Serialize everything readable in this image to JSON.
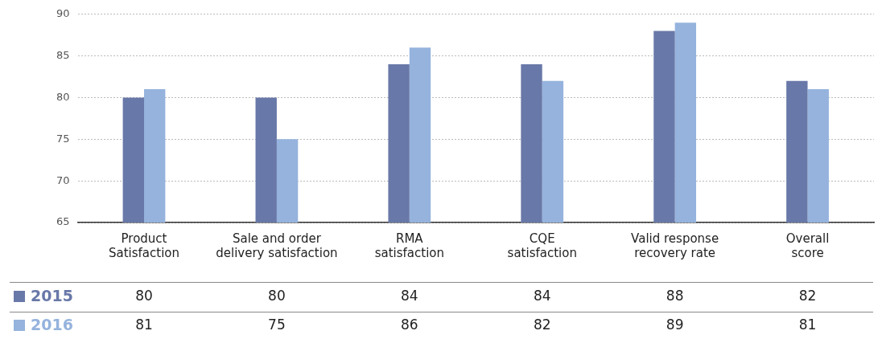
{
  "chart_data": {
    "type": "bar",
    "categories": [
      "Product Satisfaction",
      "Sale and order delivery satisfaction",
      "RMA satisfaction",
      "CQE satisfaction",
      "Valid response recovery rate",
      "Overall score"
    ],
    "series": [
      {
        "name": "2015",
        "color": "#6878a8",
        "values": [
          80,
          80,
          84,
          84,
          88,
          82
        ]
      },
      {
        "name": "2016",
        "color": "#95b3dd",
        "values": [
          81,
          75,
          86,
          82,
          89,
          81
        ]
      }
    ],
    "ylim": [
      65,
      90
    ],
    "yticks": [
      65,
      70,
      75,
      80,
      85,
      90
    ],
    "grid": "y",
    "legend": "bottom left",
    "data_labels": true
  }
}
